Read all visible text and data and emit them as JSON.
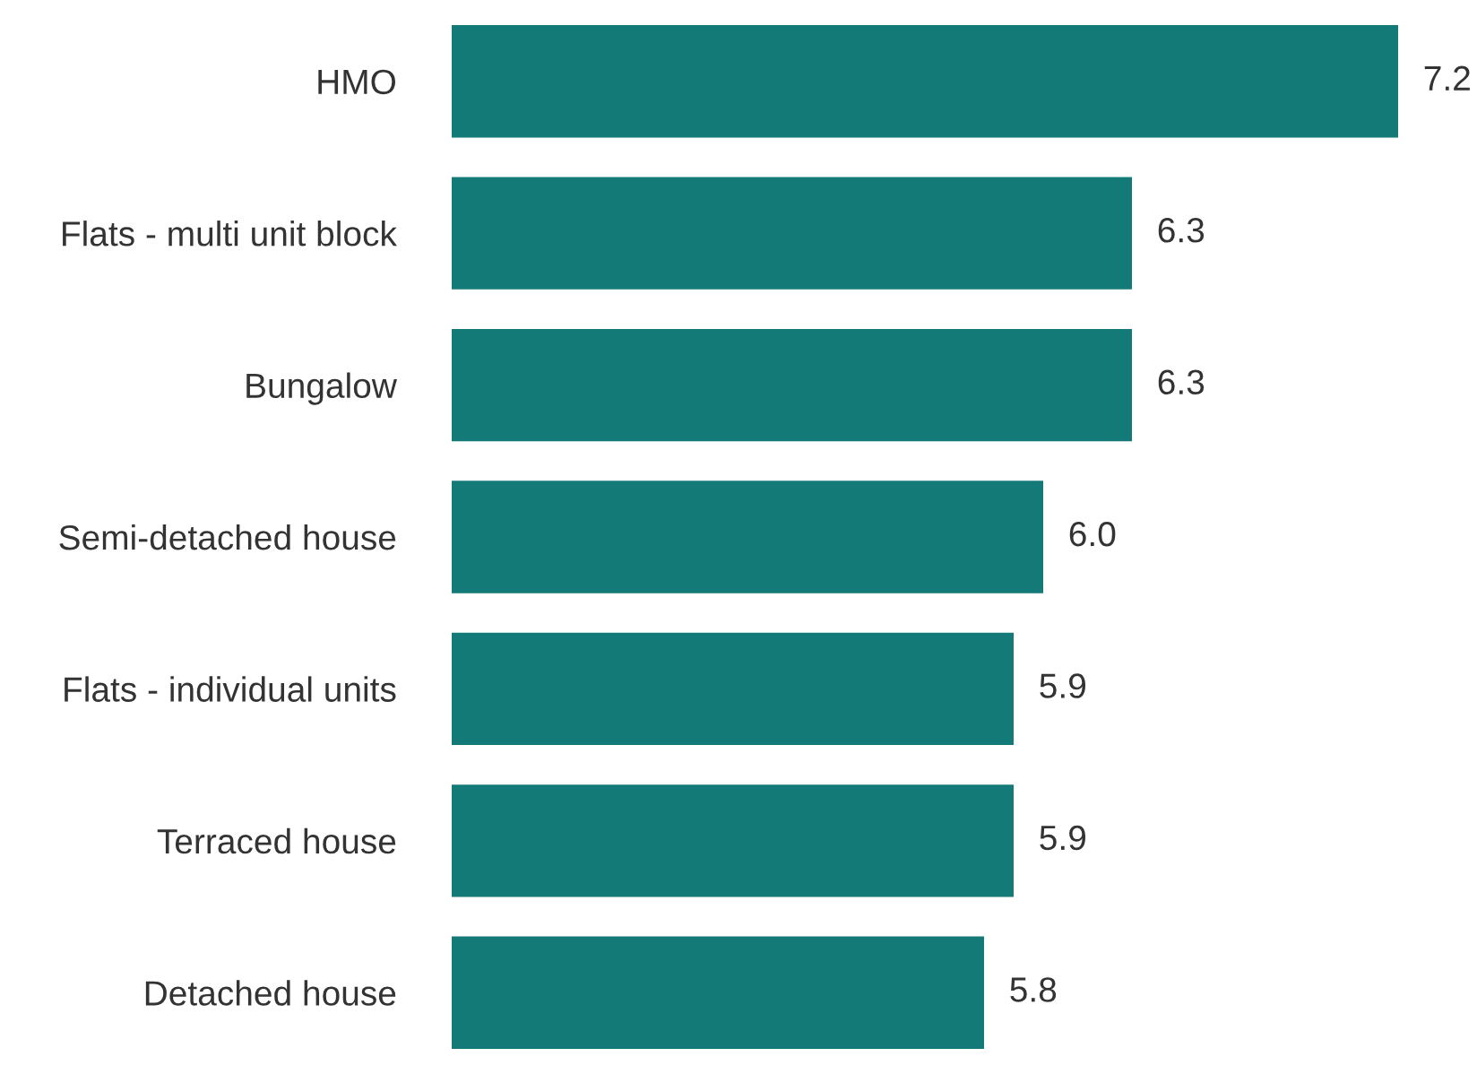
{
  "chart_data": {
    "type": "bar",
    "orientation": "horizontal",
    "categories": [
      "HMO",
      "Flats - multi unit block",
      "Bungalow",
      "Semi-detached house",
      "Flats - individual units",
      "Terraced house",
      "Detached house"
    ],
    "values": [
      7.2,
      6.3,
      6.3,
      6.0,
      5.9,
      5.9,
      5.8
    ],
    "value_labels": [
      "7.2",
      "6.3",
      "6.3",
      "6.0",
      "5.9",
      "5.9",
      "5.8"
    ],
    "color": "#147a78",
    "xlim": [
      4,
      7.2
    ],
    "grid": false,
    "legend": false
  }
}
